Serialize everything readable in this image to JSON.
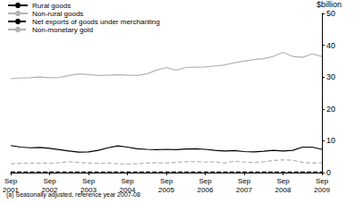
{
  "chart_data": {
    "type": "line",
    "y_label": "$billion",
    "annotations": [
      "(a) Seasonally adjusted, reference year 2007-08"
    ],
    "categories": [
      "Sep 2001",
      null,
      null,
      null,
      "Sep 2002",
      null,
      null,
      null,
      "Sep 2003",
      null,
      null,
      null,
      "Sep 2004",
      null,
      null,
      null,
      "Sep 2005",
      null,
      null,
      null,
      "Sep 2006",
      null,
      null,
      null,
      "Sep 2007",
      null,
      null,
      null,
      "Sep 2008",
      null,
      null,
      null,
      "Sep 2009"
    ],
    "series": [
      {
        "name": "Rural goods",
        "color": "#000000",
        "line_style": "solid",
        "values": [
          8.5,
          8.0,
          7.8,
          7.9,
          7.6,
          7.2,
          6.8,
          6.4,
          6.5,
          7.0,
          7.8,
          8.4,
          8.0,
          7.5,
          7.3,
          7.2,
          7.3,
          7.2,
          7.4,
          7.5,
          7.3,
          7.0,
          6.8,
          6.9,
          6.6,
          6.5,
          6.7,
          7.0,
          6.8,
          7.0,
          8.0,
          8.0,
          7.3
        ]
      },
      {
        "name": "Non-rural goods",
        "color": "#b4b4b4",
        "line_style": "solid",
        "values": [
          29.5,
          29.7,
          29.8,
          30.0,
          29.8,
          29.9,
          30.5,
          31.0,
          30.8,
          30.5,
          30.6,
          30.7,
          30.6,
          30.5,
          31.0,
          32.2,
          33.0,
          32.2,
          33.0,
          33.1,
          33.2,
          33.5,
          33.8,
          34.5,
          35.0,
          35.5,
          35.8,
          36.5,
          37.8,
          36.5,
          36.2,
          37.3,
          36.5
        ]
      },
      {
        "name": "Net exports of goods under merchanting",
        "color": "#000000",
        "line_style": "dashed",
        "values": [
          0.2,
          0.2,
          0.2,
          0.2,
          0.2,
          0.2,
          0.2,
          0.2,
          0.2,
          0.2,
          0.2,
          0.2,
          0.2,
          0.2,
          0.2,
          0.2,
          0.2,
          0.2,
          0.2,
          0.2,
          0.2,
          0.2,
          0.2,
          0.2,
          0.2,
          0.2,
          0.2,
          0.2,
          0.2,
          0.2,
          0.2,
          0.2,
          0.2
        ]
      },
      {
        "name": "Non-monetary gold",
        "color": "#b4b4b4",
        "line_style": "dashed",
        "values": [
          2.8,
          2.9,
          3.0,
          3.0,
          2.9,
          3.1,
          3.4,
          3.2,
          3.0,
          2.9,
          3.0,
          2.8,
          2.7,
          2.8,
          3.0,
          3.1,
          3.0,
          3.2,
          3.4,
          3.5,
          3.3,
          3.4,
          3.0,
          3.6,
          3.3,
          3.2,
          3.4,
          3.8,
          4.0,
          3.9,
          3.2,
          3.0,
          3.1
        ]
      }
    ],
    "ylim": [
      0,
      50
    ],
    "yticks": [
      0,
      10,
      20,
      30,
      40,
      50
    ],
    "grid": false,
    "legend": "top-left"
  }
}
